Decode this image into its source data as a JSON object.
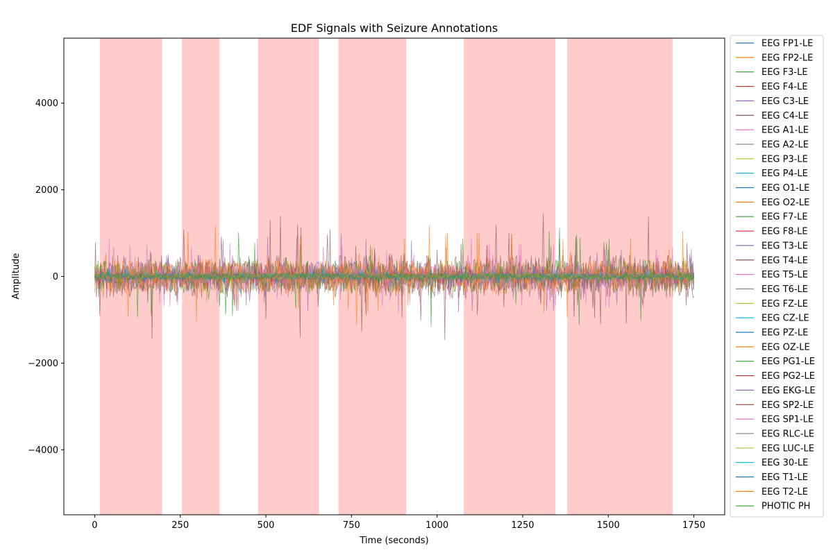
{
  "chart_data": {
    "type": "line",
    "title": "EDF Signals with Seizure Annotations",
    "xlabel": "Time (seconds)",
    "ylabel": "Amplitude",
    "xlim": [
      -90,
      1840
    ],
    "ylim": [
      -5500,
      5500
    ],
    "x_ticks": [
      0,
      250,
      500,
      750,
      1000,
      1250,
      1500,
      1750
    ],
    "x_tick_labels": [
      "0",
      "250",
      "500",
      "750",
      "1000",
      "1250",
      "1500",
      "1750"
    ],
    "y_ticks": [
      -4000,
      -2000,
      0,
      2000,
      4000
    ],
    "y_tick_labels": [
      "−4000",
      "−2000",
      "0",
      "2000",
      "4000"
    ],
    "grid": false,
    "legend_position": "outside-right",
    "seizure_intervals": [
      [
        15,
        197
      ],
      [
        255,
        365
      ],
      [
        477,
        655
      ],
      [
        712,
        910
      ],
      [
        1078,
        1346
      ],
      [
        1380,
        1688
      ]
    ],
    "seizure_color": "#ff7f7f",
    "x_range": [
      0,
      1750
    ],
    "series": [
      {
        "name": "EEG FP1-LE",
        "color": "#1f77b4",
        "amp": 60
      },
      {
        "name": "EEG FP2-LE",
        "color": "#ff7f0e",
        "amp": 60
      },
      {
        "name": "EEG F3-LE",
        "color": "#2ca02c",
        "amp": 120
      },
      {
        "name": "EEG F4-LE",
        "color": "#d62728",
        "amp": 80
      },
      {
        "name": "EEG C3-LE",
        "color": "#9467bd",
        "amp": 350
      },
      {
        "name": "EEG C4-LE",
        "color": "#8c564b",
        "amp": 500
      },
      {
        "name": "EEG A1-LE",
        "color": "#e377c2",
        "amp": 300
      },
      {
        "name": "EEG A2-LE",
        "color": "#7f7f7f",
        "amp": 60
      },
      {
        "name": "EEG P3-LE",
        "color": "#bcbd22",
        "amp": 60
      },
      {
        "name": "EEG P4-LE",
        "color": "#17becf",
        "amp": 60
      },
      {
        "name": "EEG O1-LE",
        "color": "#1f77b4",
        "amp": 60
      },
      {
        "name": "EEG O2-LE",
        "color": "#ff7f0e",
        "amp": 60
      },
      {
        "name": "EEG F7-LE",
        "color": "#2ca02c",
        "amp": 400
      },
      {
        "name": "EEG F8-LE",
        "color": "#d62728",
        "amp": 60
      },
      {
        "name": "EEG T3-LE",
        "color": "#9467bd",
        "amp": 200
      },
      {
        "name": "EEG T4-LE",
        "color": "#8c564b",
        "amp": 350
      },
      {
        "name": "EEG T5-LE",
        "color": "#e377c2",
        "amp": 250
      },
      {
        "name": "EEG T6-LE",
        "color": "#7f7f7f",
        "amp": 60
      },
      {
        "name": "EEG FZ-LE",
        "color": "#bcbd22",
        "amp": 60
      },
      {
        "name": "EEG CZ-LE",
        "color": "#17becf",
        "amp": 80
      },
      {
        "name": "EEG PZ-LE",
        "color": "#1f77b4",
        "amp": 60
      },
      {
        "name": "EEG OZ-LE",
        "color": "#ff7f0e",
        "amp": 400
      },
      {
        "name": "EEG PG1-LE",
        "color": "#2ca02c",
        "amp": 80
      },
      {
        "name": "EEG PG2-LE",
        "color": "#d62728",
        "amp": 60
      },
      {
        "name": "EEG EKG-LE",
        "color": "#9467bd",
        "amp": 60
      },
      {
        "name": "EEG SP2-LE",
        "color": "#8c564b",
        "amp": 60
      },
      {
        "name": "EEG SP1-LE",
        "color": "#e377c2",
        "amp": 60
      },
      {
        "name": "EEG RLC-LE",
        "color": "#7f7f7f",
        "amp": 60
      },
      {
        "name": "EEG LUC-LE",
        "color": "#bcbd22",
        "amp": 60
      },
      {
        "name": "EEG 30-LE",
        "color": "#17becf",
        "amp": 60
      },
      {
        "name": "EEG T1-LE",
        "color": "#1f77b4",
        "amp": 60
      },
      {
        "name": "EEG T2-LE",
        "color": "#ff7f0e",
        "amp": 60
      },
      {
        "name": "PHOTIC PH",
        "color": "#2ca02c",
        "amp": 60
      }
    ]
  }
}
